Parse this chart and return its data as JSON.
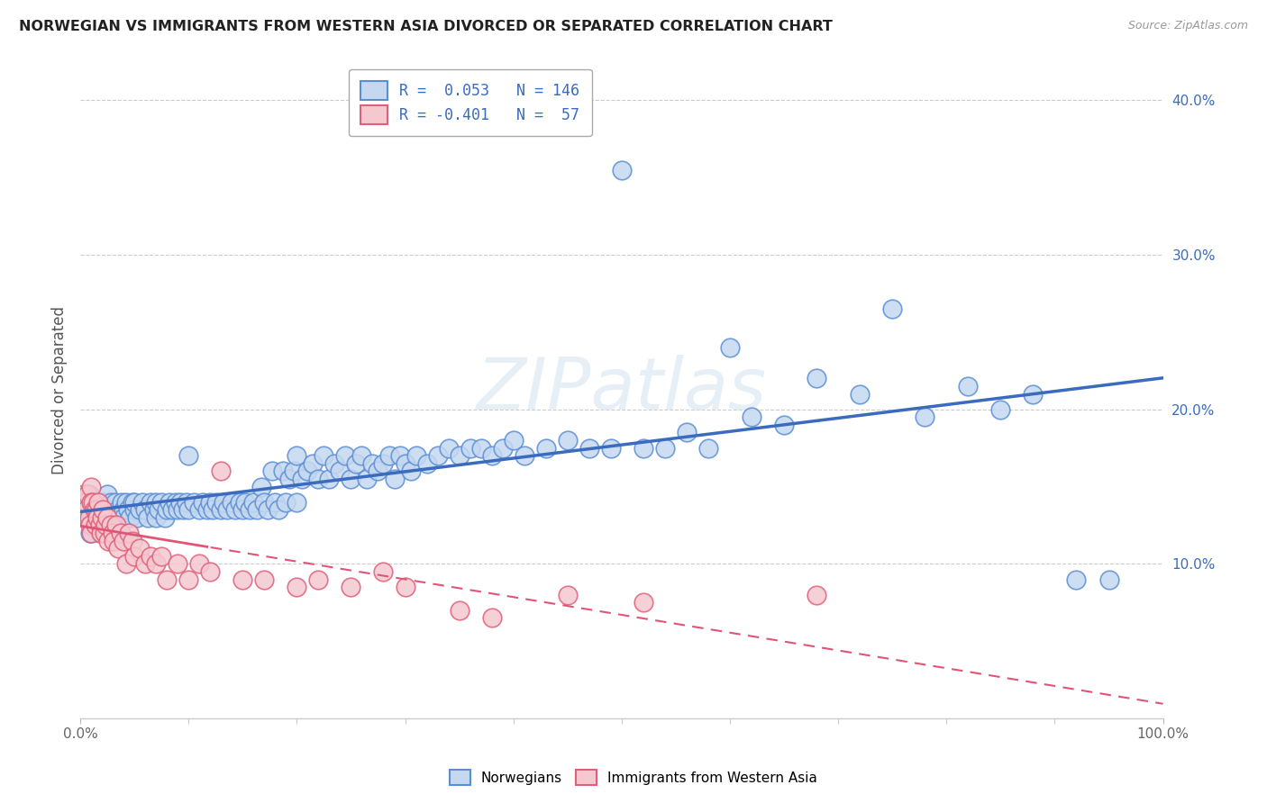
{
  "title": "NORWEGIAN VS IMMIGRANTS FROM WESTERN ASIA DIVORCED OR SEPARATED CORRELATION CHART",
  "source": "Source: ZipAtlas.com",
  "ylabel": "Divorced or Separated",
  "x_min": 0.0,
  "x_max": 1.0,
  "y_min": 0.0,
  "y_max": 0.425,
  "y_ticks": [
    0.1,
    0.2,
    0.3,
    0.4
  ],
  "y_tick_labels": [
    "10.0%",
    "20.0%",
    "30.0%",
    "40.0%"
  ],
  "x_tick_labels": [
    "0.0%",
    "100.0%"
  ],
  "r_norwegian": 0.053,
  "n_norwegian": 146,
  "r_immigrant": -0.401,
  "n_immigrant": 57,
  "norwegian_color": "#c5d8f0",
  "norwegian_edge_color": "#5b8fd4",
  "immigrant_color": "#f5c8d0",
  "immigrant_edge_color": "#e0607a",
  "norwegian_line_color": "#3a6bbf",
  "immigrant_line_color": "#e05575",
  "background_color": "#ffffff",
  "watermark": "ZIPatlas",
  "legend_top_text1": "R =  0.053   N = 146",
  "legend_top_text2": "R = -0.401   N =  57",
  "bottom_legend1": "Norwegians",
  "bottom_legend2": "Immigrants from Western Asia",
  "nor_x": [
    0.005,
    0.006,
    0.007,
    0.008,
    0.009,
    0.01,
    0.01,
    0.01,
    0.01,
    0.012,
    0.013,
    0.014,
    0.015,
    0.016,
    0.017,
    0.018,
    0.019,
    0.02,
    0.02,
    0.02,
    0.022,
    0.023,
    0.025,
    0.025,
    0.027,
    0.028,
    0.03,
    0.03,
    0.032,
    0.034,
    0.035,
    0.036,
    0.038,
    0.04,
    0.04,
    0.042,
    0.044,
    0.046,
    0.048,
    0.05,
    0.05,
    0.052,
    0.055,
    0.057,
    0.06,
    0.062,
    0.065,
    0.068,
    0.07,
    0.07,
    0.072,
    0.075,
    0.078,
    0.08,
    0.082,
    0.085,
    0.088,
    0.09,
    0.092,
    0.095,
    0.098,
    0.1,
    0.1,
    0.105,
    0.11,
    0.113,
    0.117,
    0.12,
    0.122,
    0.126,
    0.13,
    0.132,
    0.136,
    0.14,
    0.143,
    0.147,
    0.15,
    0.152,
    0.156,
    0.16,
    0.163,
    0.167,
    0.17,
    0.173,
    0.177,
    0.18,
    0.183,
    0.187,
    0.19,
    0.193,
    0.197,
    0.2,
    0.2,
    0.205,
    0.21,
    0.215,
    0.22,
    0.225,
    0.23,
    0.235,
    0.24,
    0.245,
    0.25,
    0.255,
    0.26,
    0.265,
    0.27,
    0.275,
    0.28,
    0.285,
    0.29,
    0.295,
    0.3,
    0.305,
    0.31,
    0.32,
    0.33,
    0.34,
    0.35,
    0.36,
    0.37,
    0.38,
    0.39,
    0.4,
    0.41,
    0.43,
    0.45,
    0.47,
    0.49,
    0.5,
    0.52,
    0.54,
    0.56,
    0.58,
    0.6,
    0.62,
    0.65,
    0.68,
    0.72,
    0.75,
    0.78,
    0.82,
    0.85,
    0.88,
    0.92,
    0.95
  ],
  "nor_y": [
    0.135,
    0.14,
    0.13,
    0.145,
    0.12,
    0.14,
    0.12,
    0.135,
    0.125,
    0.13,
    0.14,
    0.135,
    0.125,
    0.14,
    0.13,
    0.12,
    0.135,
    0.14,
    0.13,
    0.12,
    0.135,
    0.14,
    0.13,
    0.145,
    0.135,
    0.14,
    0.13,
    0.135,
    0.14,
    0.13,
    0.135,
    0.125,
    0.14,
    0.135,
    0.13,
    0.14,
    0.135,
    0.13,
    0.14,
    0.135,
    0.14,
    0.13,
    0.135,
    0.14,
    0.135,
    0.13,
    0.14,
    0.135,
    0.13,
    0.14,
    0.135,
    0.14,
    0.13,
    0.135,
    0.14,
    0.135,
    0.14,
    0.135,
    0.14,
    0.135,
    0.14,
    0.135,
    0.17,
    0.14,
    0.135,
    0.14,
    0.135,
    0.14,
    0.135,
    0.14,
    0.135,
    0.14,
    0.135,
    0.14,
    0.135,
    0.14,
    0.135,
    0.14,
    0.135,
    0.14,
    0.135,
    0.15,
    0.14,
    0.135,
    0.16,
    0.14,
    0.135,
    0.16,
    0.14,
    0.155,
    0.16,
    0.14,
    0.17,
    0.155,
    0.16,
    0.165,
    0.155,
    0.17,
    0.155,
    0.165,
    0.16,
    0.17,
    0.155,
    0.165,
    0.17,
    0.155,
    0.165,
    0.16,
    0.165,
    0.17,
    0.155,
    0.17,
    0.165,
    0.16,
    0.17,
    0.165,
    0.17,
    0.175,
    0.17,
    0.175,
    0.175,
    0.17,
    0.175,
    0.18,
    0.17,
    0.175,
    0.18,
    0.175,
    0.175,
    0.355,
    0.175,
    0.175,
    0.185,
    0.175,
    0.24,
    0.195,
    0.19,
    0.22,
    0.21,
    0.265,
    0.195,
    0.215,
    0.2,
    0.21,
    0.09,
    0.09
  ],
  "imm_x": [
    0.003,
    0.005,
    0.006,
    0.007,
    0.008,
    0.009,
    0.01,
    0.01,
    0.01,
    0.012,
    0.013,
    0.014,
    0.015,
    0.016,
    0.017,
    0.018,
    0.019,
    0.02,
    0.021,
    0.022,
    0.023,
    0.025,
    0.026,
    0.028,
    0.03,
    0.031,
    0.033,
    0.035,
    0.037,
    0.04,
    0.042,
    0.045,
    0.048,
    0.05,
    0.055,
    0.06,
    0.065,
    0.07,
    0.075,
    0.08,
    0.09,
    0.1,
    0.11,
    0.12,
    0.13,
    0.15,
    0.17,
    0.2,
    0.22,
    0.25,
    0.28,
    0.3,
    0.35,
    0.38,
    0.45,
    0.52,
    0.68
  ],
  "imm_y": [
    0.145,
    0.14,
    0.135,
    0.145,
    0.13,
    0.125,
    0.15,
    0.14,
    0.12,
    0.14,
    0.135,
    0.125,
    0.135,
    0.13,
    0.14,
    0.125,
    0.12,
    0.13,
    0.135,
    0.12,
    0.125,
    0.13,
    0.115,
    0.125,
    0.12,
    0.115,
    0.125,
    0.11,
    0.12,
    0.115,
    0.1,
    0.12,
    0.115,
    0.105,
    0.11,
    0.1,
    0.105,
    0.1,
    0.105,
    0.09,
    0.1,
    0.09,
    0.1,
    0.095,
    0.16,
    0.09,
    0.09,
    0.085,
    0.09,
    0.085,
    0.095,
    0.085,
    0.07,
    0.065,
    0.08,
    0.075,
    0.08
  ]
}
